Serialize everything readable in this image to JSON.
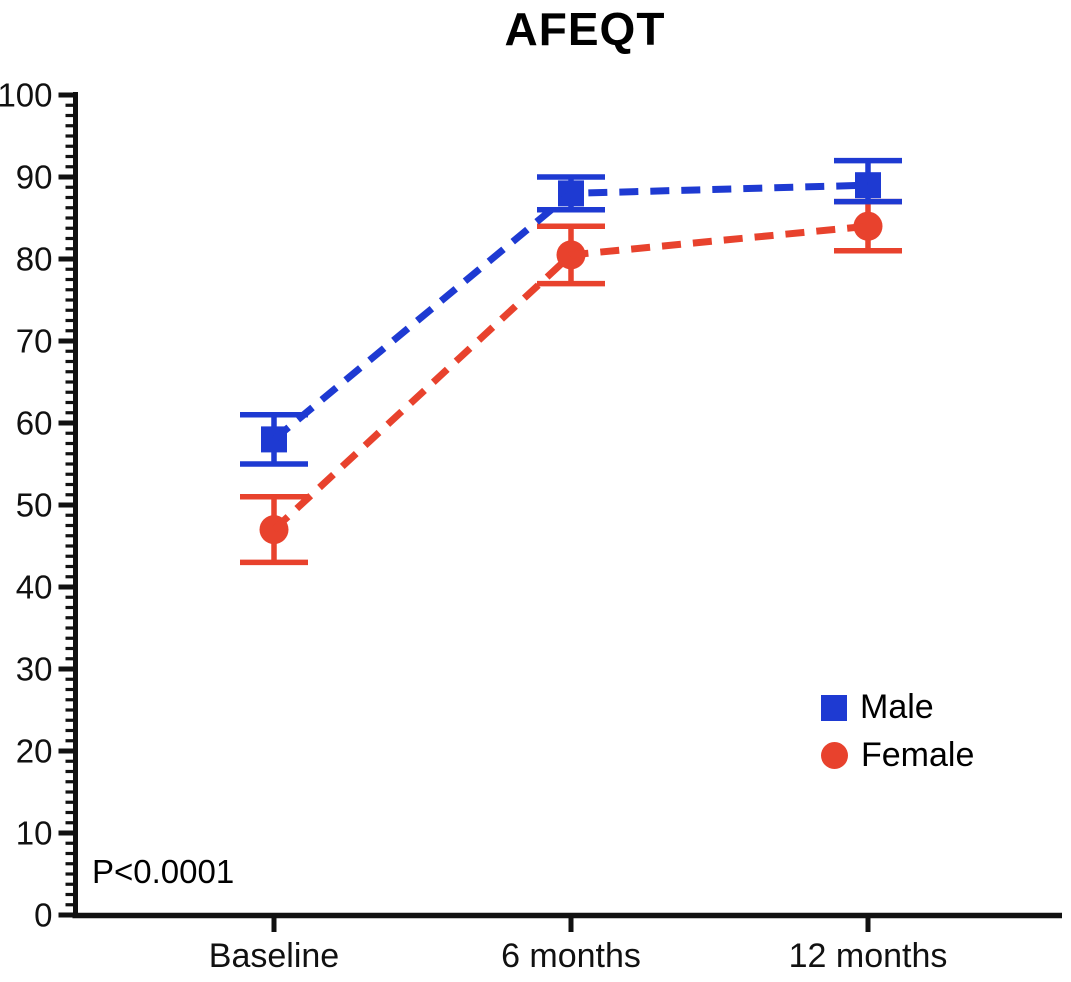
{
  "chart_data": {
    "type": "line",
    "title": "AFEQT",
    "categories": [
      "Baseline",
      "6 months",
      "12 months"
    ],
    "series": [
      {
        "name": "Male",
        "marker": "square",
        "color": "#1E3AD2",
        "line_style": "dashed",
        "values": [
          58,
          88,
          89
        ],
        "error_low": [
          55,
          86,
          87
        ],
        "error_high": [
          61,
          90,
          92
        ]
      },
      {
        "name": "Female",
        "marker": "circle",
        "color": "#E8422D",
        "line_style": "dashed",
        "values": [
          47,
          80.5,
          84
        ],
        "error_low": [
          43,
          77,
          81
        ],
        "error_high": [
          51,
          84,
          87
        ]
      }
    ],
    "ylim": [
      0,
      100
    ],
    "ytick_step": 10,
    "ytick_labels": [
      "0",
      "10",
      "20",
      "30",
      "40",
      "50",
      "60",
      "70",
      "80",
      "90",
      "100"
    ],
    "minor_intervals_per_major": 8,
    "xlabel": "",
    "ylabel": "",
    "grid": false,
    "legend_position": "right-middle",
    "annotation": "P<0.0001",
    "axis_color": "#111111",
    "background_color": "#ffffff"
  }
}
